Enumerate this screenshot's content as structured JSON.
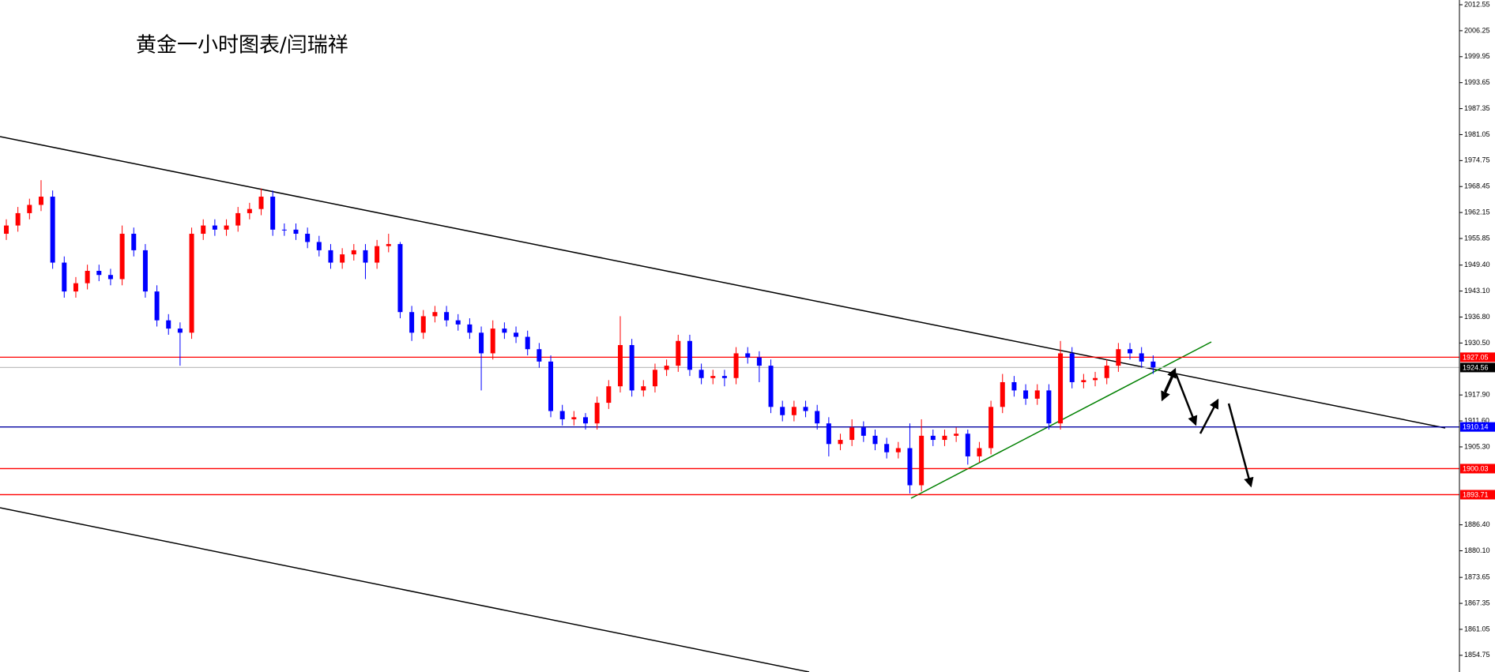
{
  "chart_data": {
    "type": "candlestick",
    "title": "黄金一小时图表/闫瑞祥",
    "ylim": [
      1850.7,
      2013.7
    ],
    "yticks": [
      2012.55,
      2006.25,
      1999.95,
      1993.65,
      1987.35,
      1981.05,
      1974.75,
      1968.45,
      1962.15,
      1955.85,
      {
        "value": 1949.4,
        "label": "1949.40"
      },
      {
        "value": 1943.1,
        "label": "1943.10"
      },
      {
        "value": 1936.8,
        "label": "1936.80"
      },
      {
        "value": 1930.5,
        "label": "1930.50"
      },
      {
        "value": 1917.9,
        "label": "1917.90"
      },
      {
        "value": 1911.6,
        "label": "1911.60"
      },
      {
        "value": 1905.3,
        "label": "1905.30"
      },
      {
        "value": 1886.4,
        "label": "1886.40"
      },
      {
        "value": 1880.1,
        "label": "1880.10"
      },
      1873.65,
      1867.35,
      1861.05,
      1854.75
    ],
    "up_color": "#ff0000",
    "down_color": "#0000ff",
    "open": [
      1957,
      1959,
      1962,
      1964,
      1966,
      1950,
      1943,
      1945,
      1948,
      1947,
      1946,
      1957,
      1953,
      1943,
      1936,
      1934,
      1933,
      1957,
      1959,
      1958,
      1959,
      1962,
      1963,
      1966,
      1958,
      1958,
      1957,
      1955,
      1953,
      1950,
      1952,
      1953,
      1950,
      1954,
      1954.5,
      1938,
      1933,
      1937,
      1938,
      1936,
      1935,
      1933,
      1928,
      1934,
      1933,
      1932,
      1929,
      1926,
      1914,
      1912,
      1912.5,
      1911,
      1916,
      1920,
      1930,
      1919,
      1920,
      1924,
      1925,
      1931,
      1924,
      1922,
      1922.5,
      1922,
      1928,
      1927,
      1925,
      1915,
      1913,
      1915,
      1914,
      1911,
      1906,
      1907,
      1910,
      1908,
      1906,
      1904,
      1905,
      1896,
      1908,
      1907,
      1908,
      1908.5,
      1903,
      1905,
      1915,
      1921,
      1919,
      1917,
      1919,
      1911,
      1928,
      1921,
      1921.5,
      1922,
      1925,
      1929,
      1928,
      1926
    ],
    "high": [
      1960.5,
      1963.5,
      1965.5,
      1970,
      1967.5,
      1951.5,
      1946.5,
      1949.5,
      1949.5,
      1948.5,
      1959,
      1958.5,
      1954.5,
      1944.5,
      1937.5,
      1935.5,
      1958.5,
      1960.5,
      1960.5,
      1960.5,
      1963.5,
      1964.5,
      1968,
      1967.5,
      1959.5,
      1959.5,
      1958.5,
      1956.5,
      1954.5,
      1953.5,
      1954.5,
      1954.5,
      1955.5,
      1957,
      1955,
      1939.5,
      1938.5,
      1939.5,
      1939.5,
      1937.5,
      1936.5,
      1934.5,
      1936,
      1935.5,
      1934.5,
      1933.5,
      1930.5,
      1927.5,
      1915.5,
      1914,
      1913.5,
      1917.5,
      1921.5,
      1937,
      1931.5,
      1921.5,
      1925.5,
      1926.5,
      1932.5,
      1932.5,
      1925.5,
      1924,
      1924,
      1929.5,
      1929.5,
      1928.5,
      1926.5,
      1916.5,
      1916.5,
      1916.5,
      1915.5,
      1912.5,
      1908.5,
      1912,
      1911.5,
      1909.5,
      1907.5,
      1906.5,
      1911,
      1912,
      1909.5,
      1909.5,
      1910,
      1909.5,
      1906.5,
      1916.5,
      1923,
      1922.5,
      1920.5,
      1920.5,
      1920.5,
      1931,
      1929.5,
      1923,
      1923.5,
      1926.5,
      1930.5,
      1930.5,
      1929.5,
      1927.5
    ],
    "low": [
      1955.5,
      1957.5,
      1960.5,
      1962.5,
      1948.5,
      1941.5,
      1941.5,
      1943.5,
      1945.5,
      1944.5,
      1944.5,
      1951.5,
      1941.5,
      1934.5,
      1932.5,
      1925,
      1931.5,
      1955.5,
      1956.5,
      1956.5,
      1957.5,
      1960.5,
      1961.5,
      1956.5,
      1956.5,
      1955.5,
      1953.5,
      1951.5,
      1948.5,
      1948.5,
      1950.5,
      1946,
      1948.5,
      1952.5,
      1936.5,
      1931,
      1931.5,
      1935.5,
      1934.5,
      1933.5,
      1931.5,
      1919,
      1926.5,
      1931.5,
      1930.5,
      1927.5,
      1924.5,
      1912.5,
      1910.5,
      1910.5,
      1909.5,
      1909.5,
      1914.5,
      1918.5,
      1917.5,
      1917.5,
      1918.5,
      1922.5,
      1923.5,
      1922.5,
      1920.5,
      1920.5,
      1920,
      1920.5,
      1925.5,
      1921,
      1913.5,
      1911.5,
      1911.5,
      1912.5,
      1909.5,
      1903,
      1904.5,
      1905.5,
      1906.5,
      1904.5,
      1902.5,
      1902.5,
      1894,
      1894.5,
      1905.5,
      1905.5,
      1906.5,
      1901,
      1901.5,
      1903.5,
      1913.5,
      1917.5,
      1915.5,
      1915.5,
      1909.5,
      1909.5,
      1919.5,
      1919.5,
      1920,
      1920.5,
      1923.5,
      1926.5,
      1924.5,
      1923
    ],
    "close": [
      1959,
      1962,
      1964,
      1966,
      1950,
      1943,
      1945,
      1948,
      1947,
      1946,
      1957,
      1953,
      1943,
      1936,
      1934,
      1933,
      1957,
      1959,
      1958,
      1959,
      1962,
      1963,
      1966,
      1958,
      1958,
      1957,
      1955,
      1953,
      1950,
      1952,
      1953,
      1950,
      1954,
      1954.5,
      1938,
      1933,
      1937,
      1938,
      1936,
      1935,
      1933,
      1928,
      1934,
      1933,
      1932,
      1929,
      1926,
      1914,
      1912,
      1912.5,
      1911,
      1916,
      1920,
      1930,
      1919,
      1920,
      1924,
      1925,
      1931,
      1924,
      1922,
      1922.5,
      1922,
      1928,
      1927,
      1925,
      1915,
      1913,
      1915,
      1914,
      1911,
      1906,
      1907,
      1910,
      1908,
      1906,
      1904,
      1905,
      1896,
      1908,
      1907,
      1908,
      1908.5,
      1903,
      1905,
      1915,
      1921,
      1919,
      1917,
      1919,
      1911,
      1928,
      1921,
      1921.5,
      1922,
      1925,
      1929,
      1928,
      1926,
      1924.56
    ],
    "levels": [
      {
        "value": 1927.05,
        "color": "#ff0000",
        "tag_color": "#ff0000"
      },
      {
        "value": 1924.56,
        "color": "#c0c0c0",
        "tag_color": "#000000"
      },
      {
        "value": 1910.14,
        "color": "#0000a0",
        "tag_color": "#0000ff"
      },
      {
        "value": 1900.03,
        "color": "#ff0000",
        "tag_color": "#ff0000"
      },
      {
        "value": 1893.71,
        "color": "#ff0000",
        "tag_color": "#ff0000"
      }
    ]
  }
}
